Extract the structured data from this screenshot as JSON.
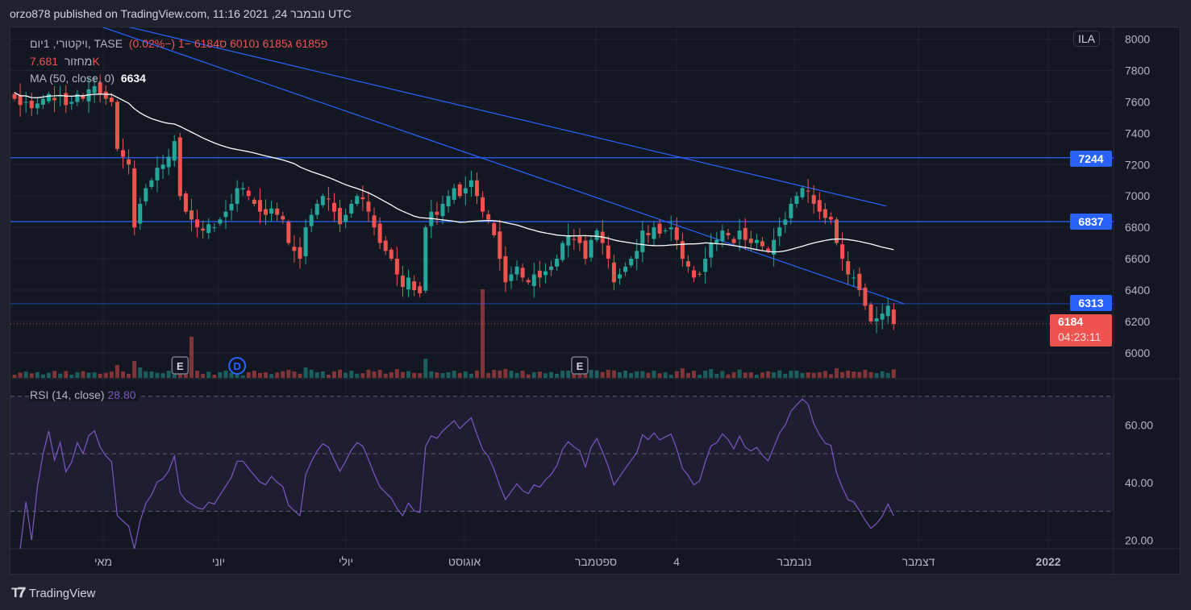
{
  "header": {
    "published": "orzo878 published on TradingView.com, 11:16 2021 ,24 נובמבר UTC"
  },
  "legend": {
    "symbol": "ויקטורי, 1יום, TASE",
    "ohlc": "פ6185  ג6185  נ6010  ס6184  −1 (−0.02%)",
    "volume_label": "מחזור",
    "volume_value": "7.681K",
    "ma_label": "MA (50, close, 0)",
    "ma_value": "6634",
    "rsi_label": "RSI (14, close)",
    "rsi_value": "28.80"
  },
  "currency_badge": "ILA",
  "price_tags": {
    "line1": "7244",
    "line2": "6837",
    "line3": "6313",
    "last": "6184",
    "countdown": "04:23:11"
  },
  "footer": {
    "brand": "TradingView"
  },
  "colors": {
    "up": "#26a69a",
    "down": "#ef5350",
    "line": "#2962ff",
    "ma": "#ffffff",
    "rsi": "#7e57c2"
  },
  "chart_data": {
    "type": "candlestick",
    "title": "ויקטורי, 1יום, TASE",
    "closes": [
      7620,
      7580,
      7600,
      7560,
      7590,
      7620,
      7650,
      7610,
      7640,
      7580,
      7600,
      7650,
      7620,
      7680,
      7700,
      7650,
      7620,
      7600,
      7300,
      7250,
      7200,
      6800,
      6950,
      7050,
      7100,
      7180,
      7200,
      7250,
      7350,
      7000,
      6900,
      6850,
      6800,
      6780,
      6820,
      6800,
      6850,
      6900,
      6950,
      7050,
      7050,
      7000,
      6950,
      6900,
      6880,
      6920,
      6880,
      6850,
      6700,
      6650,
      6600,
      6800,
      6880,
      6950,
      7000,
      6980,
      6900,
      6820,
      6880,
      6950,
      7000,
      6980,
      6900,
      6800,
      6700,
      6650,
      6600,
      6500,
      6420,
      6480,
      6400,
      6380,
      6800,
      6900,
      6880,
      6950,
      7000,
      7050,
      7000,
      7050,
      7100,
      7000,
      6900,
      6850,
      6750,
      6600,
      6450,
      6500,
      6550,
      6480,
      6450,
      6500,
      6480,
      6520,
      6550,
      6600,
      6700,
      6750,
      6720,
      6700,
      6600,
      6720,
      6780,
      6700,
      6600,
      6450,
      6500,
      6550,
      6600,
      6650,
      6780,
      6750,
      6800,
      6760,
      6780,
      6800,
      6720,
      6600,
      6550,
      6480,
      6500,
      6600,
      6700,
      6720,
      6780,
      6750,
      6700,
      6780,
      6720,
      6700,
      6720,
      6680,
      6650,
      6720,
      6800,
      6850,
      6950,
      7000,
      7050,
      7030,
      6950,
      6900,
      6860,
      6850,
      6700,
      6600,
      6500,
      6480,
      6400,
      6300,
      6200,
      6220,
      6250,
      6300,
      6184
    ],
    "volume_spikes": [
      {
        "index": 31,
        "value": 5
      },
      {
        "index": 82,
        "value": 16
      }
    ],
    "price_axis": {
      "ticks": [
        "6000",
        "6200",
        "6400",
        "6600",
        "6800",
        "7000",
        "7200",
        "7400",
        "7600",
        "7800",
        "8000"
      ],
      "range": [
        5840,
        8070
      ]
    },
    "rsi_axis": {
      "ticks": [
        "20.00",
        "40.00",
        "60.00"
      ],
      "bands": [
        30,
        70
      ],
      "mid": 50,
      "range": [
        17,
        73
      ]
    },
    "x_labels": [
      "מאי",
      "יוני",
      "יולי",
      "אוגוסט",
      "ספטמבר",
      "4",
      "נובמבר",
      "דצמבר",
      "2022"
    ],
    "horizontal_lines": [
      7244,
      6837,
      6313
    ],
    "trendlines": [
      {
        "from": [
          18.5,
          8091
        ],
        "to": [
          152.7,
          6936
        ]
      },
      {
        "from": [
          14.3,
          8091
        ],
        "to": [
          155.8,
          6313
        ]
      }
    ],
    "events": [
      {
        "index": 29,
        "label": "E"
      },
      {
        "index": 39,
        "label": "D"
      },
      {
        "index": 99,
        "label": "E"
      }
    ],
    "ma_period": 50,
    "rsi_period": 14
  }
}
